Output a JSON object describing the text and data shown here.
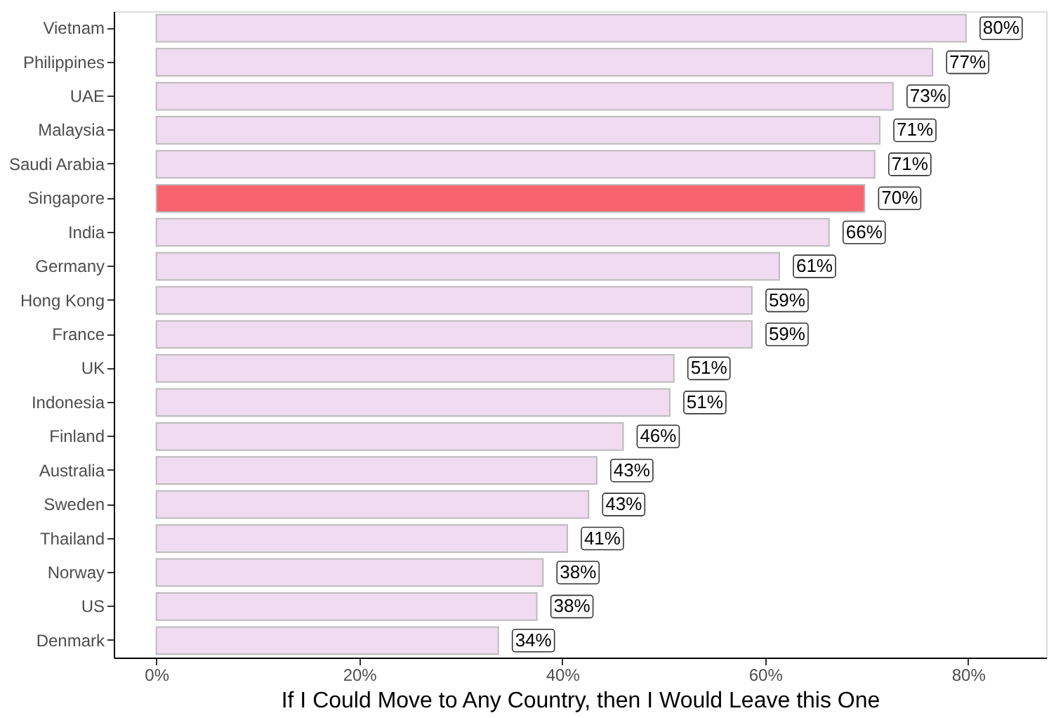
{
  "chart_data": {
    "type": "bar",
    "orientation": "horizontal",
    "xlabel": "If I Could Move to Any Country, then I Would Leave this One",
    "categories": [
      "Vietnam",
      "Philippines",
      "UAE",
      "Malaysia",
      "Saudi Arabia",
      "Singapore",
      "India",
      "Germany",
      "Hong Kong",
      "France",
      "UK",
      "Indonesia",
      "Finland",
      "Australia",
      "Sweden",
      "Thailand",
      "Norway",
      "US",
      "Denmark"
    ],
    "values": [
      79.8,
      76.5,
      72.6,
      71.3,
      70.8,
      69.8,
      66.3,
      61.4,
      58.7,
      58.7,
      51.0,
      50.6,
      46.0,
      43.4,
      42.6,
      40.5,
      38.1,
      37.5,
      33.7
    ],
    "value_labels": [
      "80%",
      "77%",
      "73%",
      "71%",
      "71%",
      "70%",
      "66%",
      "61%",
      "59%",
      "59%",
      "51%",
      "51%",
      "46%",
      "43%",
      "43%",
      "41%",
      "38%",
      "38%",
      "34%"
    ],
    "colors": [
      "#f0dbf0",
      "#f0dbf0",
      "#f0dbf0",
      "#f0dbf0",
      "#f0dbf0",
      "#f8636f",
      "#f0dbf0",
      "#f0dbf0",
      "#f0dbf0",
      "#f0dbf0",
      "#f0dbf0",
      "#f0dbf0",
      "#f0dbf0",
      "#f0dbf0",
      "#f0dbf0",
      "#f0dbf0",
      "#f0dbf0",
      "#f0dbf0",
      "#f0dbf0"
    ],
    "xlim": [
      -4.2,
      87.7
    ],
    "xticks": [
      {
        "value": 0,
        "label": "0%"
      },
      {
        "value": 20,
        "label": "20%"
      },
      {
        "value": 40,
        "label": "40%"
      },
      {
        "value": 60,
        "label": "60%"
      },
      {
        "value": 80,
        "label": "80%"
      }
    ],
    "grid": false
  }
}
